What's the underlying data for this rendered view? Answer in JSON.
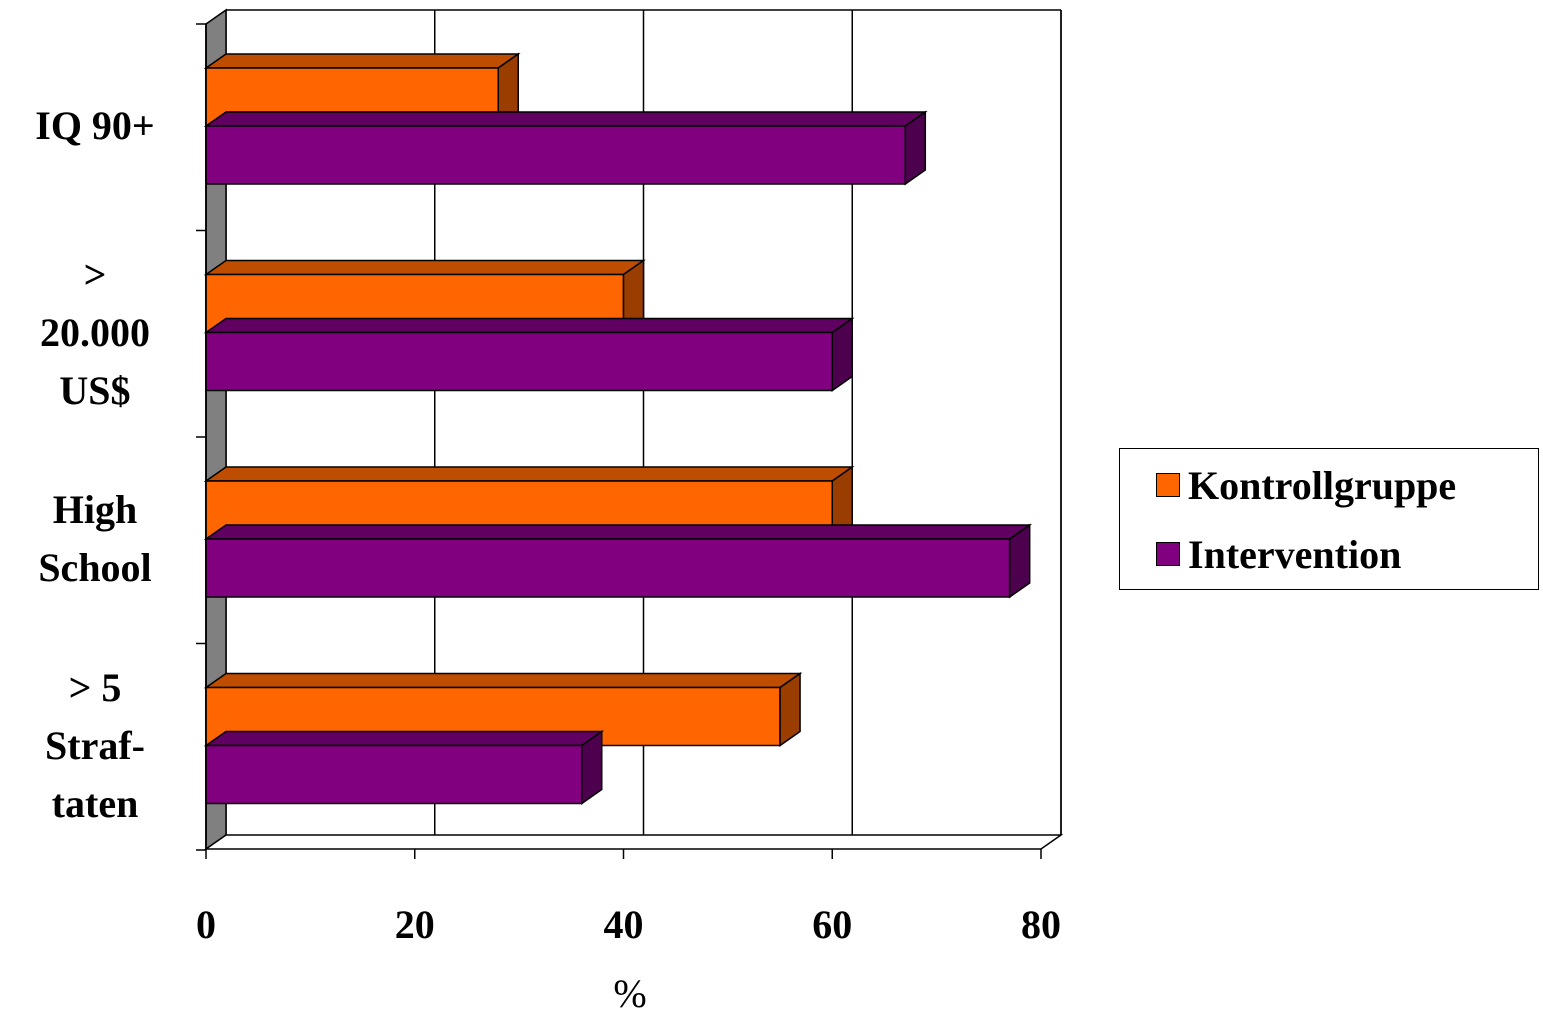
{
  "chart_data": {
    "type": "bar",
    "orientation": "horizontal",
    "style": "3d",
    "categories": [
      "IQ 90+",
      "> 20.000 US$",
      "High School",
      "> 5 Straf- taten"
    ],
    "category_lines": [
      [
        "IQ 90+"
      ],
      [
        ">",
        "20.000",
        "US$"
      ],
      [
        "High",
        "School"
      ],
      [
        "> 5",
        "Straf-",
        "taten"
      ]
    ],
    "series": [
      {
        "name": "Kontrollgruppe",
        "color": "#FF6600",
        "values": [
          28,
          40,
          60,
          55
        ]
      },
      {
        "name": "Intervention",
        "color": "#800080",
        "values": [
          67,
          60,
          77,
          36
        ]
      }
    ],
    "xlabel": "%",
    "ylabel": "",
    "xlim": [
      0,
      80
    ],
    "xticks": [
      "0",
      "20",
      "40",
      "60",
      "80"
    ],
    "grid": true,
    "legend_position": "right"
  }
}
